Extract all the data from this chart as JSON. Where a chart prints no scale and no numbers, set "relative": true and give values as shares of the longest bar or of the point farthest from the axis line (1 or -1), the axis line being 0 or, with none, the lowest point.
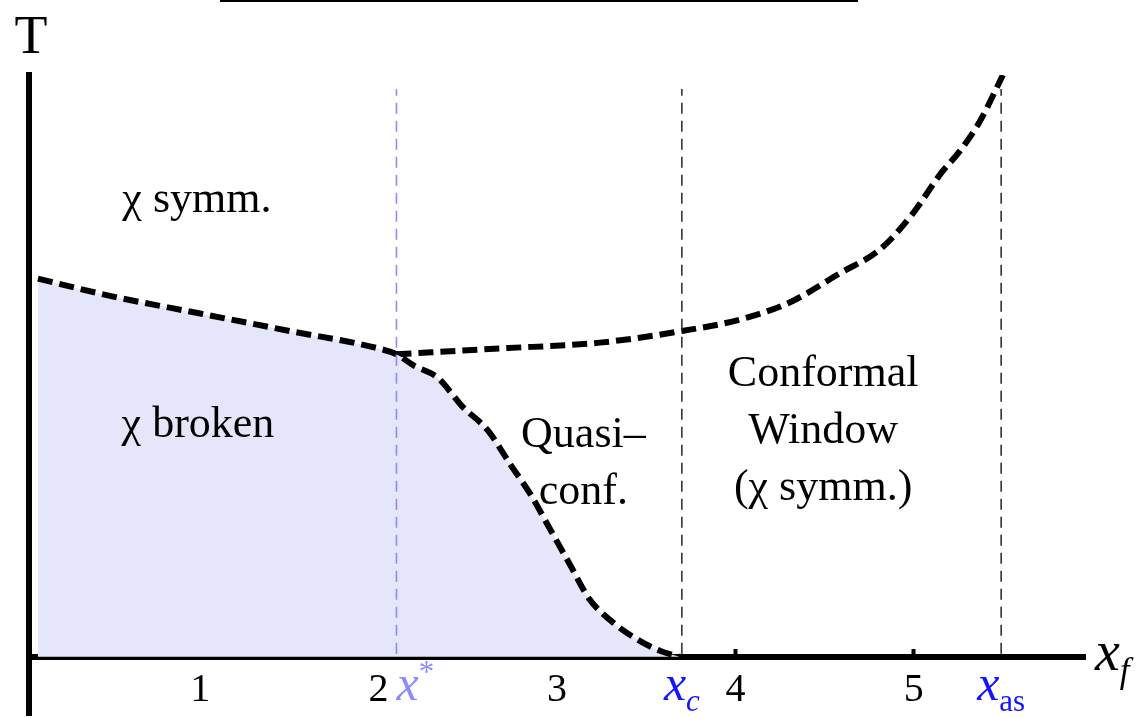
{
  "chart_data": {
    "type": "line",
    "xlabel": "x$_{f}$",
    "ylabel": "T",
    "relative": true,
    "xlim": [
      0.04,
      5.96
    ],
    "xticks": [
      1,
      2,
      3,
      4,
      5
    ],
    "line_style": "dashed",
    "series": [
      {
        "type": "area",
        "color": "#e6e6fa",
        "x": [
          0.09,
          0.5,
          1.0,
          1.5,
          2.0,
          2.1,
          2.2,
          2.33,
          2.47,
          2.61,
          2.74,
          2.85,
          2.96,
          3.07,
          3.18,
          3.31,
          3.45,
          3.58,
          3.69
        ],
        "values": [
          0.65,
          0.62,
          0.59,
          0.56,
          0.53,
          0.52,
          0.5,
          0.48,
          0.43,
          0.39,
          0.33,
          0.28,
          0.22,
          0.16,
          0.1,
          0.06,
          0.03,
          0.01,
          0
        ]
      },
      {
        "color": "#000000",
        "x": [
          2.1,
          2.68,
          3.24,
          3.7,
          4.03,
          4.31,
          4.59,
          4.81,
          4.99,
          5.15,
          5.26,
          5.37,
          5.5
        ],
        "values": [
          0.52,
          0.53,
          0.54,
          0.56,
          0.58,
          0.61,
          0.66,
          0.7,
          0.76,
          0.83,
          0.87,
          0.92,
          1
        ]
      }
    ],
    "ref_lines": [
      {
        "axis": "x",
        "value": 2.1,
        "label": "x$^{*}$",
        "color": "#8c8cff",
        "line_style": "dashed"
      },
      {
        "axis": "x",
        "value": 3.7,
        "label": "x$_{c}$",
        "color": "#333333",
        "line_style": "dashed"
      },
      {
        "axis": "x",
        "value": 5.49,
        "label": "x$_{as}$",
        "color": "#333333",
        "line_style": "dashed"
      }
    ],
    "annotations": [
      "χ symm.",
      "χ broken",
      "Quasi–\nconf.",
      "Conformal\nWindow\n(χ symm.)"
    ]
  }
}
